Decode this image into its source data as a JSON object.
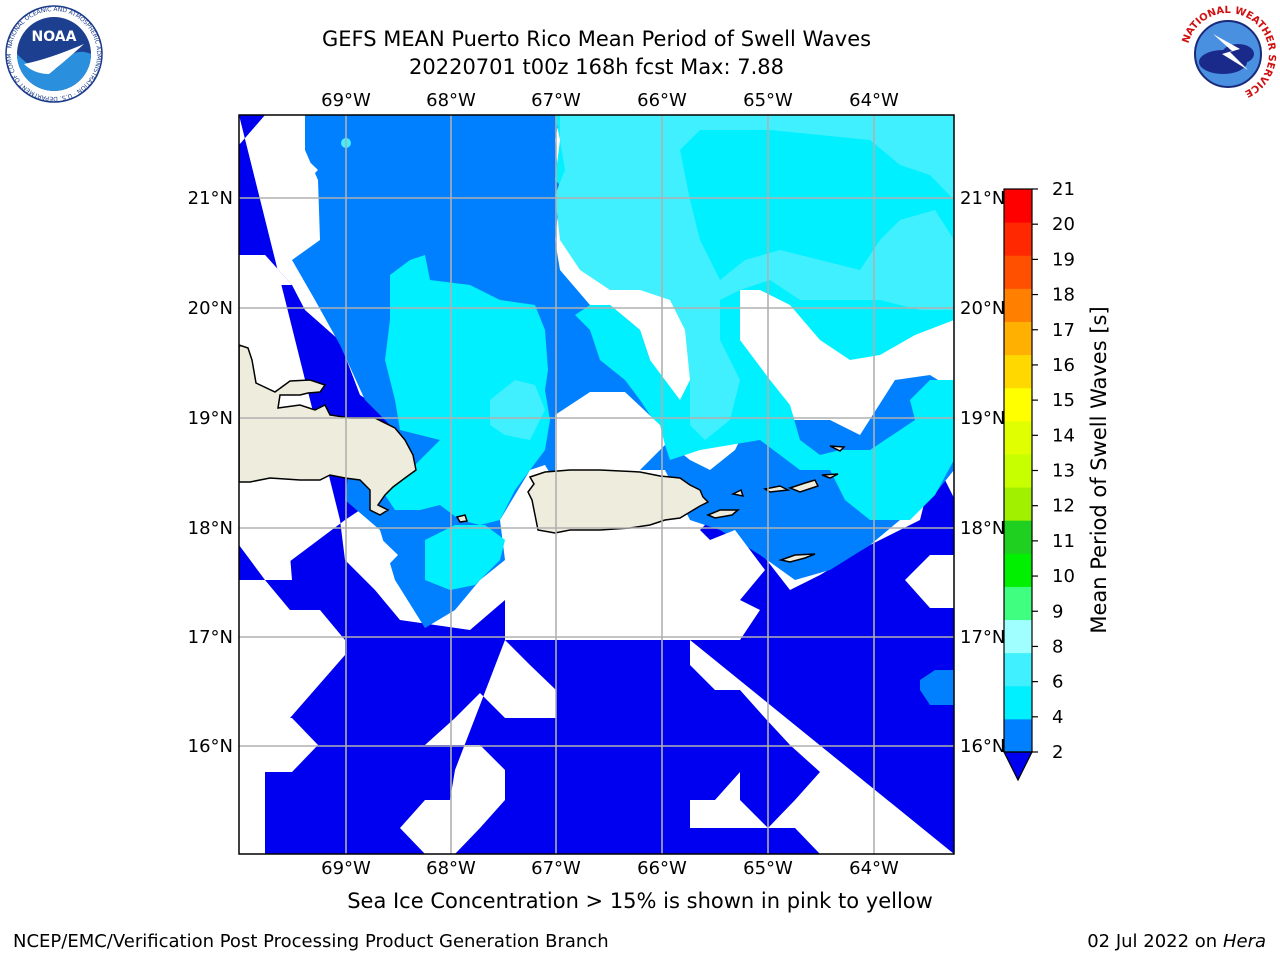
{
  "header": {
    "title_line1": "GEFS MEAN Puerto Rico Mean Period of Swell Waves",
    "title_line2": "20220701 t00z 168h fcst   Max: 7.88"
  },
  "logos": {
    "noaa_text": "NOAA",
    "noaa_ring": "NATIONAL OCEANIC AND ATMOSPHERIC ADMINISTRATION · U.S. DEPARTMENT OF COMMERCE",
    "nws_ring": "NATIONAL WEATHER SERVICE"
  },
  "map": {
    "lon_labels": [
      "69°W",
      "68°W",
      "67°W",
      "66°W",
      "65°W",
      "64°W"
    ],
    "lat_labels": [
      "21°N",
      "20°N",
      "19°N",
      "18°N",
      "17°N",
      "16°N"
    ],
    "colors": {
      "land": "#eeecdc",
      "blue": "#0000f0",
      "mid_blue": "#0080ff",
      "cyan": "#00f0ff",
      "light_cyan": "#40f0ff",
      "grid": "#b0b0b0"
    }
  },
  "colorbar": {
    "label": "Mean Period of Swell Waves [s]",
    "ticks": [
      "2",
      "4",
      "6",
      "8",
      "9",
      "10",
      "11",
      "12",
      "13",
      "14",
      "15",
      "16",
      "17",
      "18",
      "19",
      "20",
      "21"
    ],
    "colors": [
      "#0080ff",
      "#00f0ff",
      "#40f0ff",
      "#a0ffff",
      "#40ff80",
      "#00f000",
      "#20d020",
      "#a0f000",
      "#c8ff00",
      "#e0ff00",
      "#ffff00",
      "#ffd800",
      "#ffb000",
      "#ff8000",
      "#ff5000",
      "#ff2800",
      "#ff0000"
    ],
    "under_color": "#0000f0"
  },
  "caption": "Sea Ice Concentration > 15% is shown in pink to yellow",
  "footer": {
    "left": "NCEP/EMC/Verification Post Processing Product Generation Branch",
    "right_prefix": "02 Jul 2022 on ",
    "right_host": "Hera"
  }
}
